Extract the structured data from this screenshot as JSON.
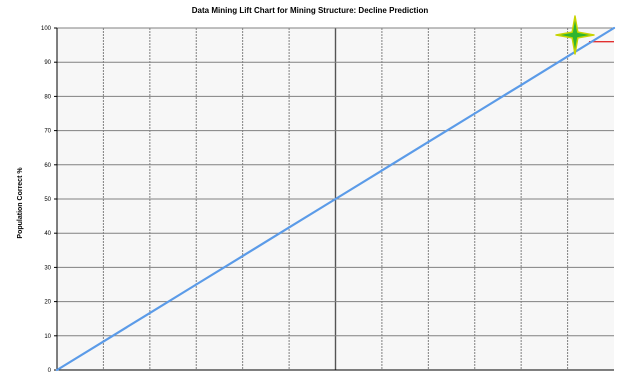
{
  "chart_data": {
    "type": "line",
    "title": "Data Mining Lift Chart for Mining Structure: Decline Prediction",
    "xlabel": "",
    "ylabel": "Population Correct %",
    "xlim": [
      0,
      100
    ],
    "ylim": [
      0,
      100
    ],
    "y_ticks": [
      0,
      10,
      20,
      30,
      40,
      50,
      60,
      70,
      80,
      90,
      100
    ],
    "x_gridlines": [
      0,
      8.33,
      16.67,
      25,
      33.33,
      41.67,
      50,
      58.33,
      66.67,
      75,
      83.33,
      91.67,
      100
    ],
    "grid": true,
    "legend": "none",
    "series": [
      {
        "color": "#5b9be8",
        "x": [
          0,
          8,
          16,
          25,
          33,
          42,
          50,
          58,
          67,
          75,
          83,
          92,
          100
        ],
        "y": [
          0,
          8,
          16,
          25,
          33,
          42,
          50,
          58,
          67,
          75,
          83,
          92,
          100
        ]
      }
    ],
    "reference_line": {
      "color": "#e23030",
      "x": [
        95.5,
        100
      ],
      "y": [
        96,
        96
      ]
    }
  },
  "colors": {
    "grid": "#808080",
    "center_line": "#555555",
    "plot_background": "#f7f7f7",
    "star_marker": "#2fb52f"
  },
  "icons": [
    "star-marker-icon"
  ]
}
